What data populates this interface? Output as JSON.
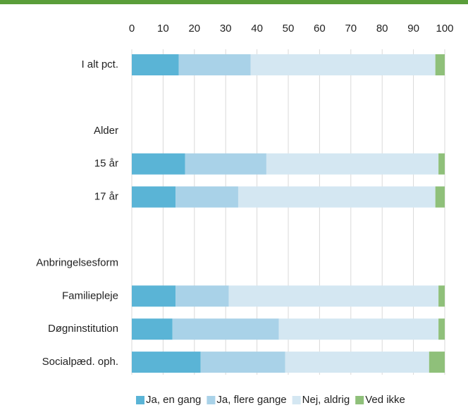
{
  "chart_data": {
    "type": "stacked_barh",
    "categories": [
      "I alt pct.",
      null,
      "Alder",
      "15 år",
      "17 år",
      null,
      "Anbringelsesform",
      "Familiepleje",
      "Døgninstitution",
      "Socialpæd. oph."
    ],
    "series": [
      {
        "name": "Ja, en gang",
        "color": "#5ab4d6",
        "values": [
          15,
          null,
          null,
          17,
          14,
          null,
          null,
          14,
          13,
          22
        ]
      },
      {
        "name": "Ja, flere gange",
        "color": "#a9d2e8",
        "values": [
          23,
          null,
          null,
          26,
          20,
          null,
          null,
          17,
          34,
          27
        ]
      },
      {
        "name": "Nej, aldrig",
        "color": "#d4e7f2",
        "values": [
          59,
          null,
          null,
          55,
          63,
          null,
          null,
          67,
          51,
          46
        ]
      },
      {
        "name": "Ved ikke",
        "color": "#8fc07a",
        "values": [
          3,
          null,
          null,
          2,
          3,
          null,
          null,
          2,
          2,
          5
        ]
      }
    ],
    "xlim": [
      0,
      100
    ],
    "xticks": [
      0,
      10,
      20,
      30,
      40,
      50,
      60,
      70,
      80,
      90,
      100
    ],
    "grid": true,
    "legend": "bottom"
  }
}
